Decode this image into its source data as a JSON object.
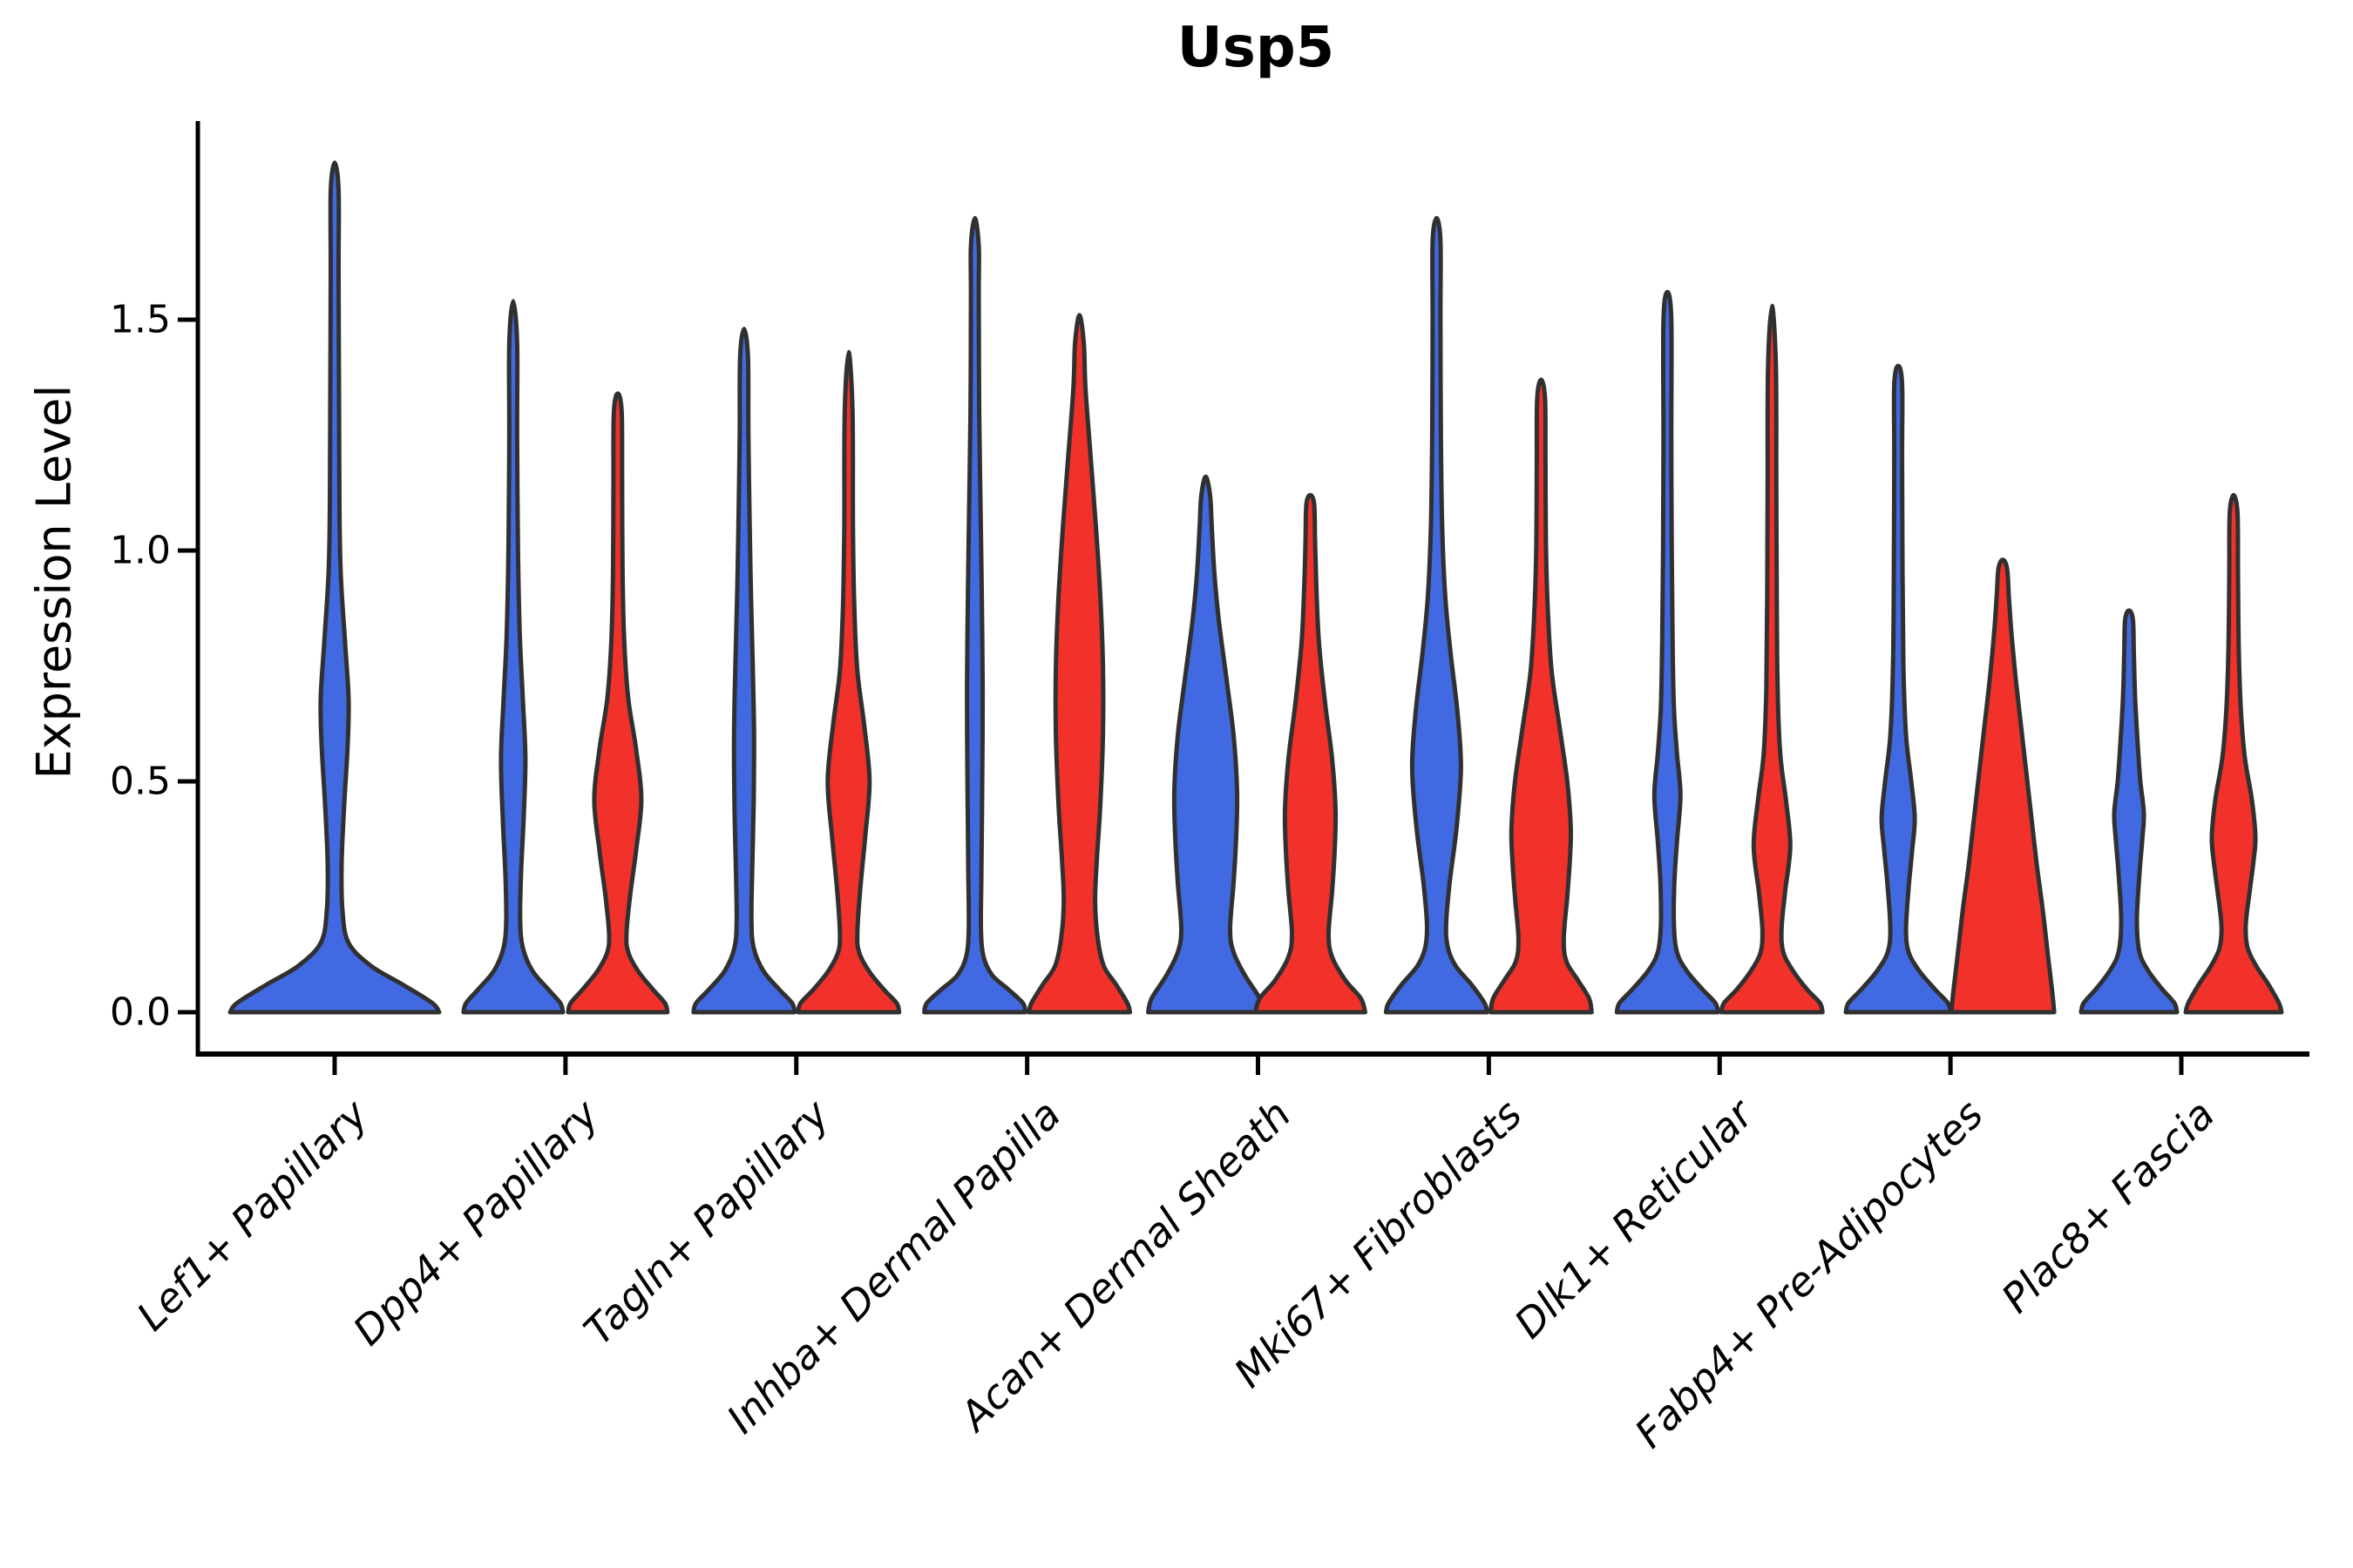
{
  "title": "Usp5",
  "axes": {
    "ylabel": "Expression Level",
    "ytick_labels": [
      "0.0",
      "0.5",
      "1.0",
      "1.5"
    ],
    "ytick_values": [
      0.0,
      0.5,
      1.0,
      1.5
    ]
  },
  "colors": {
    "blue_fill": "#4169E1",
    "red_fill": "#F2312B",
    "violin_outline": "#303030",
    "axis_color": "#000000",
    "background": "#ffffff"
  },
  "chart_data": {
    "type": "violin",
    "title": "Usp5",
    "xlabel": "",
    "ylabel": "Expression Level",
    "ylim": [
      0,
      1.93
    ],
    "yticks": [
      0.0,
      0.5,
      1.0,
      1.5
    ],
    "grid": false,
    "legend": "none",
    "categories": [
      "Lef1+ Papillary",
      "Dpp4+ Papillary",
      "Tagln+ Papillary",
      "Inhba+ Dermal Papilla",
      "Acan+ Dermal Sheath",
      "Mki67+ Fibroblasts",
      "Dlk1+ Reticular",
      "Fabp4+ Pre-Adipocytes",
      "Plac8+ Fascia"
    ],
    "groups": [
      {
        "name": "blue",
        "color": "#4169E1"
      },
      {
        "name": "red",
        "color": "#F2312B"
      }
    ],
    "violins": [
      {
        "category": "Lef1+ Papillary",
        "group": "blue",
        "span": "full",
        "max_value": 1.84,
        "profile": [
          [
            0,
            120
          ],
          [
            0.02,
            112
          ],
          [
            0.06,
            78
          ],
          [
            0.1,
            42
          ],
          [
            0.15,
            16
          ],
          [
            0.22,
            9
          ],
          [
            0.32,
            8
          ],
          [
            0.45,
            11
          ],
          [
            0.58,
            15
          ],
          [
            0.68,
            16
          ],
          [
            0.8,
            12
          ],
          [
            0.95,
            7
          ],
          [
            1.1,
            5.5
          ],
          [
            1.35,
            5
          ],
          [
            1.6,
            4.5
          ],
          [
            1.78,
            4.5
          ],
          [
            1.84,
            0
          ]
        ]
      },
      {
        "category": "Dpp4+ Papillary",
        "group": "blue",
        "span": "half",
        "max_value": 1.54,
        "profile": [
          [
            0,
            57
          ],
          [
            0.02,
            54
          ],
          [
            0.05,
            40
          ],
          [
            0.09,
            22
          ],
          [
            0.14,
            11
          ],
          [
            0.2,
            8
          ],
          [
            0.3,
            9
          ],
          [
            0.42,
            12
          ],
          [
            0.55,
            14
          ],
          [
            0.68,
            11
          ],
          [
            0.82,
            7.5
          ],
          [
            1.0,
            5.5
          ],
          [
            1.25,
            4.5
          ],
          [
            1.45,
            4.5
          ],
          [
            1.54,
            0
          ]
        ]
      },
      {
        "category": "Dpp4+ Papillary",
        "group": "red",
        "span": "half",
        "max_value": 1.34,
        "profile": [
          [
            0,
            57
          ],
          [
            0.02,
            54
          ],
          [
            0.05,
            40
          ],
          [
            0.09,
            23
          ],
          [
            0.13,
            12
          ],
          [
            0.17,
            10
          ],
          [
            0.25,
            14
          ],
          [
            0.35,
            21
          ],
          [
            0.46,
            27
          ],
          [
            0.57,
            21
          ],
          [
            0.68,
            12
          ],
          [
            0.8,
            7.5
          ],
          [
            0.95,
            5.5
          ],
          [
            1.15,
            5
          ],
          [
            1.3,
            4.5
          ],
          [
            1.34,
            0
          ]
        ]
      },
      {
        "category": "Tagln+ Papillary",
        "group": "blue",
        "span": "half",
        "max_value": 1.48,
        "profile": [
          [
            0,
            58
          ],
          [
            0.02,
            55
          ],
          [
            0.05,
            40
          ],
          [
            0.09,
            22
          ],
          [
            0.14,
            11
          ],
          [
            0.2,
            8.5
          ],
          [
            0.32,
            9.5
          ],
          [
            0.45,
            11
          ],
          [
            0.6,
            11.5
          ],
          [
            0.75,
            10
          ],
          [
            0.9,
            8
          ],
          [
            1.05,
            6.5
          ],
          [
            1.25,
            5
          ],
          [
            1.42,
            4.5
          ],
          [
            1.48,
            0
          ]
        ]
      },
      {
        "category": "Tagln+ Papillary",
        "group": "red",
        "span": "half",
        "max_value": 1.43,
        "profile": [
          [
            0,
            58
          ],
          [
            0.02,
            55
          ],
          [
            0.05,
            40
          ],
          [
            0.09,
            23
          ],
          [
            0.13,
            12
          ],
          [
            0.17,
            10
          ],
          [
            0.26,
            13
          ],
          [
            0.38,
            19
          ],
          [
            0.5,
            24
          ],
          [
            0.62,
            18
          ],
          [
            0.74,
            10
          ],
          [
            0.88,
            6.5
          ],
          [
            1.05,
            5
          ],
          [
            1.3,
            4.5
          ],
          [
            1.43,
            0
          ]
        ]
      },
      {
        "category": "Inhba+ Dermal Papilla",
        "group": "blue",
        "span": "half",
        "max_value": 1.72,
        "profile": [
          [
            0,
            58
          ],
          [
            0.02,
            55
          ],
          [
            0.05,
            38
          ],
          [
            0.08,
            20
          ],
          [
            0.12,
            10
          ],
          [
            0.18,
            7
          ],
          [
            0.3,
            7.5
          ],
          [
            0.5,
            8.5
          ],
          [
            0.7,
            9
          ],
          [
            0.9,
            8
          ],
          [
            1.1,
            6.5
          ],
          [
            1.3,
            5
          ],
          [
            1.55,
            4.5
          ],
          [
            1.66,
            4.5
          ],
          [
            1.72,
            0
          ]
        ]
      },
      {
        "category": "Inhba+ Dermal Papilla",
        "group": "red",
        "span": "half",
        "max_value": 1.51,
        "profile": [
          [
            0,
            58
          ],
          [
            0.02,
            55
          ],
          [
            0.06,
            42
          ],
          [
            0.1,
            28
          ],
          [
            0.16,
            21
          ],
          [
            0.24,
            18
          ],
          [
            0.33,
            20
          ],
          [
            0.45,
            24
          ],
          [
            0.6,
            27
          ],
          [
            0.75,
            27
          ],
          [
            0.9,
            24
          ],
          [
            1.05,
            19
          ],
          [
            1.2,
            13
          ],
          [
            1.35,
            7
          ],
          [
            1.45,
            5
          ],
          [
            1.51,
            0
          ]
        ]
      },
      {
        "category": "Acan+ Dermal Sheath",
        "group": "blue",
        "span": "half",
        "max_value": 1.16,
        "profile": [
          [
            0,
            66
          ],
          [
            0.03,
            62
          ],
          [
            0.08,
            45
          ],
          [
            0.13,
            32
          ],
          [
            0.18,
            28
          ],
          [
            0.28,
            32
          ],
          [
            0.38,
            35
          ],
          [
            0.48,
            36
          ],
          [
            0.6,
            32
          ],
          [
            0.72,
            24
          ],
          [
            0.85,
            15
          ],
          [
            0.95,
            10
          ],
          [
            1.05,
            7
          ],
          [
            1.12,
            5
          ],
          [
            1.16,
            0
          ]
        ]
      },
      {
        "category": "Acan+ Dermal Sheath",
        "group": "red",
        "span": "half",
        "max_value": 1.12,
        "profile": [
          [
            0,
            63
          ],
          [
            0.03,
            58
          ],
          [
            0.07,
            40
          ],
          [
            0.12,
            25
          ],
          [
            0.17,
            21
          ],
          [
            0.26,
            25
          ],
          [
            0.35,
            28
          ],
          [
            0.44,
            29
          ],
          [
            0.55,
            25
          ],
          [
            0.67,
            17
          ],
          [
            0.8,
            10
          ],
          [
            0.92,
            7
          ],
          [
            1.02,
            5.5
          ],
          [
            1.1,
            4.5
          ],
          [
            1.12,
            0
          ]
        ]
      },
      {
        "category": "Mki67+ Fibroblasts",
        "group": "blue",
        "span": "half",
        "max_value": 1.72,
        "profile": [
          [
            0,
            58
          ],
          [
            0.02,
            55
          ],
          [
            0.06,
            40
          ],
          [
            0.1,
            22
          ],
          [
            0.14,
            13
          ],
          [
            0.19,
            11
          ],
          [
            0.28,
            15
          ],
          [
            0.4,
            23
          ],
          [
            0.53,
            28
          ],
          [
            0.65,
            24
          ],
          [
            0.78,
            16
          ],
          [
            0.9,
            10
          ],
          [
            1.05,
            6.5
          ],
          [
            1.25,
            5
          ],
          [
            1.5,
            4.5
          ],
          [
            1.67,
            4.5
          ],
          [
            1.72,
            0
          ]
        ]
      },
      {
        "category": "Mki67+ Fibroblasts",
        "group": "red",
        "span": "half",
        "max_value": 1.37,
        "profile": [
          [
            0,
            58
          ],
          [
            0.03,
            55
          ],
          [
            0.07,
            42
          ],
          [
            0.11,
            29
          ],
          [
            0.16,
            26
          ],
          [
            0.25,
            30
          ],
          [
            0.33,
            33
          ],
          [
            0.4,
            34
          ],
          [
            0.5,
            30
          ],
          [
            0.62,
            21
          ],
          [
            0.74,
            12
          ],
          [
            0.88,
            7.5
          ],
          [
            1.02,
            5.5
          ],
          [
            1.2,
            5
          ],
          [
            1.33,
            4.5
          ],
          [
            1.37,
            0
          ]
        ]
      },
      {
        "category": "Dlk1+ Reticular",
        "group": "blue",
        "span": "half",
        "max_value": 1.56,
        "profile": [
          [
            0,
            58
          ],
          [
            0.02,
            55
          ],
          [
            0.05,
            40
          ],
          [
            0.09,
            22
          ],
          [
            0.13,
            11
          ],
          [
            0.19,
            7.5
          ],
          [
            0.28,
            8
          ],
          [
            0.37,
            11
          ],
          [
            0.47,
            15
          ],
          [
            0.56,
            11
          ],
          [
            0.66,
            7.5
          ],
          [
            0.8,
            6
          ],
          [
            1.0,
            5
          ],
          [
            1.25,
            4.5
          ],
          [
            1.5,
            4.5
          ],
          [
            1.56,
            0
          ]
        ]
      },
      {
        "category": "Dlk1+ Reticular",
        "group": "red",
        "span": "half",
        "max_value": 1.53,
        "profile": [
          [
            0,
            58
          ],
          [
            0.02,
            55
          ],
          [
            0.05,
            40
          ],
          [
            0.09,
            24
          ],
          [
            0.13,
            13
          ],
          [
            0.18,
            11
          ],
          [
            0.26,
            15
          ],
          [
            0.36,
            21
          ],
          [
            0.46,
            16
          ],
          [
            0.56,
            9.5
          ],
          [
            0.7,
            6.5
          ],
          [
            0.9,
            5.5
          ],
          [
            1.15,
            5
          ],
          [
            1.4,
            4.5
          ],
          [
            1.53,
            0
          ]
        ]
      },
      {
        "category": "Fabp4+ Pre-Adipocytes",
        "group": "blue",
        "span": "half",
        "max_value": 1.4,
        "profile": [
          [
            0,
            60
          ],
          [
            0.02,
            57
          ],
          [
            0.05,
            42
          ],
          [
            0.09,
            24
          ],
          [
            0.13,
            12
          ],
          [
            0.18,
            9
          ],
          [
            0.27,
            12
          ],
          [
            0.35,
            16
          ],
          [
            0.42,
            19
          ],
          [
            0.5,
            15
          ],
          [
            0.6,
            9
          ],
          [
            0.75,
            6
          ],
          [
            0.95,
            5
          ],
          [
            1.2,
            4.5
          ],
          [
            1.36,
            4.5
          ],
          [
            1.4,
            0
          ]
        ]
      },
      {
        "category": "Fabp4+ Pre-Adipocytes",
        "group": "red",
        "span": "half",
        "max_value": 0.98,
        "profile": [
          [
            0,
            59
          ],
          [
            0.04,
            57
          ],
          [
            0.12,
            52
          ],
          [
            0.22,
            46
          ],
          [
            0.32,
            39
          ],
          [
            0.42,
            33
          ],
          [
            0.52,
            27
          ],
          [
            0.62,
            21
          ],
          [
            0.72,
            15
          ],
          [
            0.82,
            10
          ],
          [
            0.9,
            7
          ],
          [
            0.96,
            5
          ],
          [
            0.98,
            0
          ]
        ]
      },
      {
        "category": "Plac8+ Fascia",
        "group": "blue",
        "span": "half",
        "max_value": 0.87,
        "profile": [
          [
            0,
            55
          ],
          [
            0.02,
            52
          ],
          [
            0.05,
            38
          ],
          [
            0.09,
            22
          ],
          [
            0.13,
            12
          ],
          [
            0.2,
            9
          ],
          [
            0.3,
            12
          ],
          [
            0.37,
            15
          ],
          [
            0.43,
            17
          ],
          [
            0.5,
            13
          ],
          [
            0.58,
            10
          ],
          [
            0.68,
            7
          ],
          [
            0.78,
            5.5
          ],
          [
            0.85,
            4.5
          ],
          [
            0.87,
            0
          ]
        ]
      },
      {
        "category": "Plac8+ Fascia",
        "group": "red",
        "span": "half",
        "max_value": 1.12,
        "profile": [
          [
            0,
            55
          ],
          [
            0.02,
            52
          ],
          [
            0.06,
            40
          ],
          [
            0.1,
            26
          ],
          [
            0.14,
            16
          ],
          [
            0.19,
            14
          ],
          [
            0.27,
            19
          ],
          [
            0.33,
            23
          ],
          [
            0.38,
            25
          ],
          [
            0.46,
            21
          ],
          [
            0.55,
            13
          ],
          [
            0.65,
            8.5
          ],
          [
            0.78,
            6
          ],
          [
            0.95,
            5
          ],
          [
            1.08,
            4.5
          ],
          [
            1.12,
            0
          ]
        ]
      }
    ]
  }
}
